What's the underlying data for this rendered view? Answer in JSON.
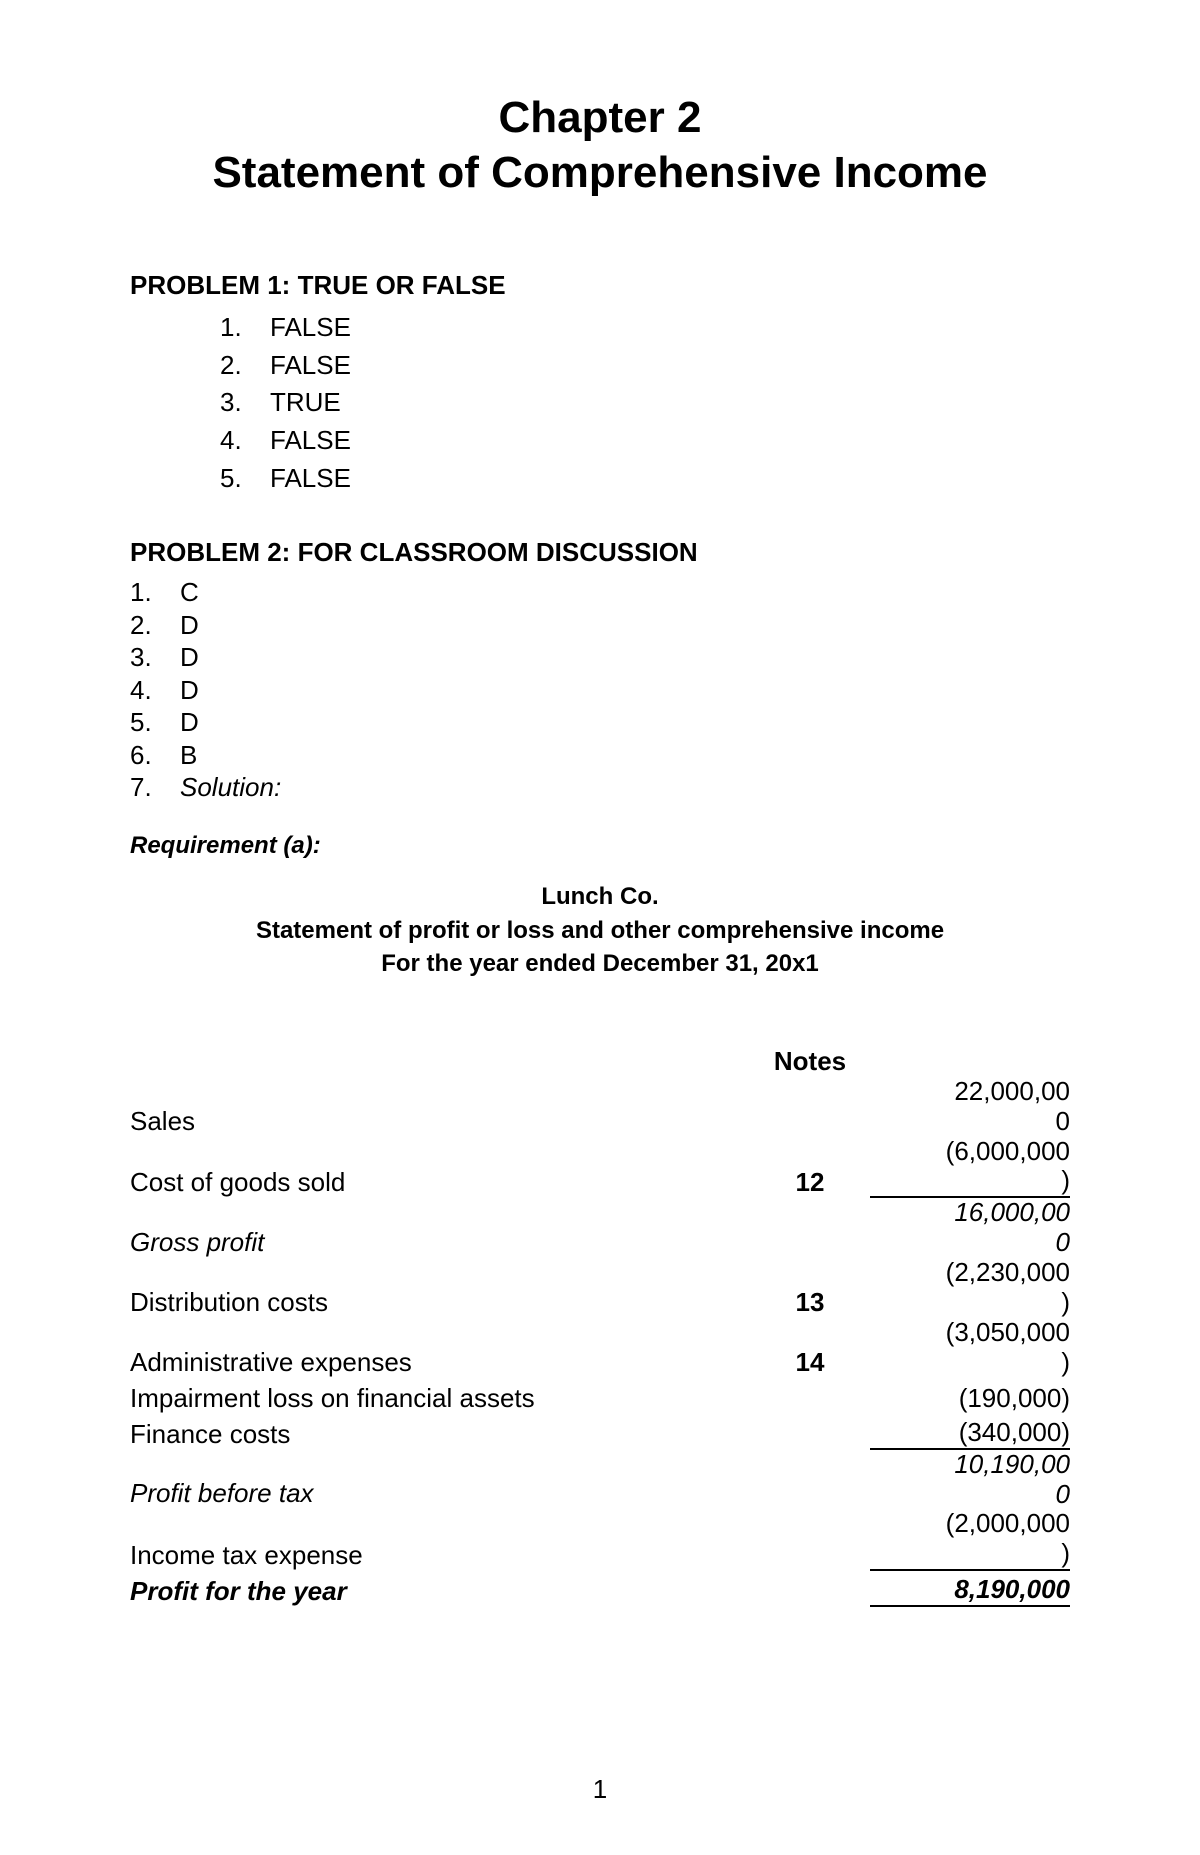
{
  "chapter": {
    "line1": "Chapter 2",
    "line2": "Statement of Comprehensive Income"
  },
  "problem1": {
    "heading": "PROBLEM 1: TRUE OR FALSE",
    "items": [
      {
        "num": "1.",
        "ans": "FALSE"
      },
      {
        "num": "2.",
        "ans": "FALSE"
      },
      {
        "num": "3.",
        "ans": "TRUE"
      },
      {
        "num": "4.",
        "ans": "FALSE"
      },
      {
        "num": "5.",
        "ans": "FALSE"
      }
    ]
  },
  "problem2": {
    "heading": "PROBLEM 2: FOR CLASSROOM DISCUSSION",
    "items": [
      {
        "num": "1.",
        "ans": "C"
      },
      {
        "num": "2.",
        "ans": "D"
      },
      {
        "num": "3.",
        "ans": "D"
      },
      {
        "num": "4.",
        "ans": "D"
      },
      {
        "num": "5.",
        "ans": "D"
      },
      {
        "num": "6.",
        "ans": "B"
      }
    ],
    "solution_num": "7.",
    "solution_label": "Solution:"
  },
  "requirement": "Requirement (a):",
  "statement_header": {
    "company": "Lunch Co.",
    "title": "Statement of profit or loss and other comprehensive income",
    "period": "For the year ended December 31, 20x1"
  },
  "notes_label": "Notes",
  "rows": {
    "sales": {
      "label": "Sales",
      "note": "",
      "amount_l1": "22,000,00",
      "amount_l2": "0"
    },
    "cogs": {
      "label": "Cost of goods sold",
      "note": "12",
      "amount_l1": "(6,000,000",
      "amount_l2": ")"
    },
    "gross": {
      "label": "Gross profit",
      "note": "",
      "amount_l1": "16,000,00",
      "amount_l2": "0"
    },
    "dist": {
      "label": "Distribution costs",
      "note": "13",
      "amount_l1": "(2,230,000",
      "amount_l2": ")"
    },
    "admin": {
      "label": "Administrative expenses",
      "note": "14",
      "amount_l1": "(3,050,000",
      "amount_l2": ")"
    },
    "impair": {
      "label": "Impairment loss on financial assets",
      "note": "",
      "amount": "(190,000)"
    },
    "finance": {
      "label": "Finance costs",
      "note": "",
      "amount": "(340,000)"
    },
    "pbt": {
      "label": "Profit before tax",
      "note": "",
      "amount_l1": "10,190,00",
      "amount_l2": "0"
    },
    "tax": {
      "label": "Income tax expense",
      "note": "",
      "amount_l1": "(2,000,000",
      "amount_l2": ")"
    },
    "pfy": {
      "label": "Profit for the year",
      "note": "",
      "amount": "8,190,000"
    }
  },
  "page_number": "1"
}
